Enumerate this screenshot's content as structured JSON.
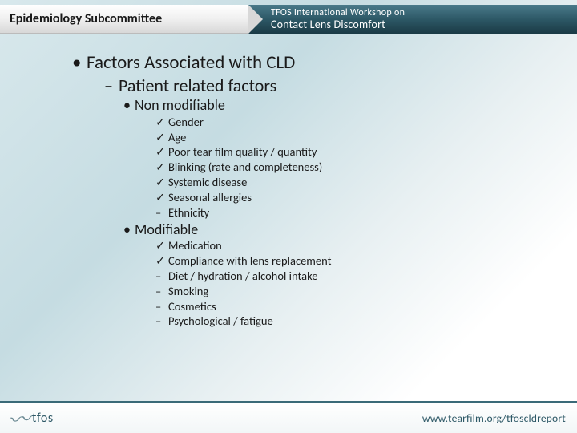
{
  "header": {
    "subcommittee": "Epidemiology Subcommittee",
    "org_line1": "TFOS International Workshop on",
    "org_line2": "Contact Lens Discomfort"
  },
  "colors": {
    "header_dark": "#2d5866",
    "rule": "#3a6a78",
    "text": "#1a1a1a",
    "bg_start": "#d8e8ec",
    "bg_end": "#ffffff"
  },
  "bullets": {
    "lvl1": {
      "mark": "•",
      "text": "Factors Associated with CLD"
    },
    "lvl2": {
      "mark": "–",
      "text": "Patient related factors"
    },
    "groups": [
      {
        "title": "Non modifiable",
        "title_mark": "•",
        "items": [
          {
            "mark": "✓",
            "text": "Gender"
          },
          {
            "mark": "✓",
            "text": "Age"
          },
          {
            "mark": "✓",
            "text": "Poor tear film quality / quantity"
          },
          {
            "mark": "✓",
            "text": "Blinking (rate and completeness)"
          },
          {
            "mark": "✓",
            "text": "Systemic disease"
          },
          {
            "mark": "✓",
            "text": "Seasonal allergies"
          },
          {
            "mark": "–",
            "text": "Ethnicity"
          }
        ]
      },
      {
        "title": "Modifiable",
        "title_mark": "•",
        "items": [
          {
            "mark": "✓",
            "text": "Medication"
          },
          {
            "mark": "✓",
            "text": "Compliance with lens replacement"
          },
          {
            "mark": "–",
            "text": "Diet / hydration / alcohol intake"
          },
          {
            "mark": "–",
            "text": "Smoking"
          },
          {
            "mark": "–",
            "text": "Cosmetics"
          },
          {
            "mark": "–",
            "text": "Psychological / fatigue"
          }
        ]
      }
    ]
  },
  "footer": {
    "logo_text": "tfos",
    "url": "www.tearfilm.org/tfoscldreport"
  }
}
